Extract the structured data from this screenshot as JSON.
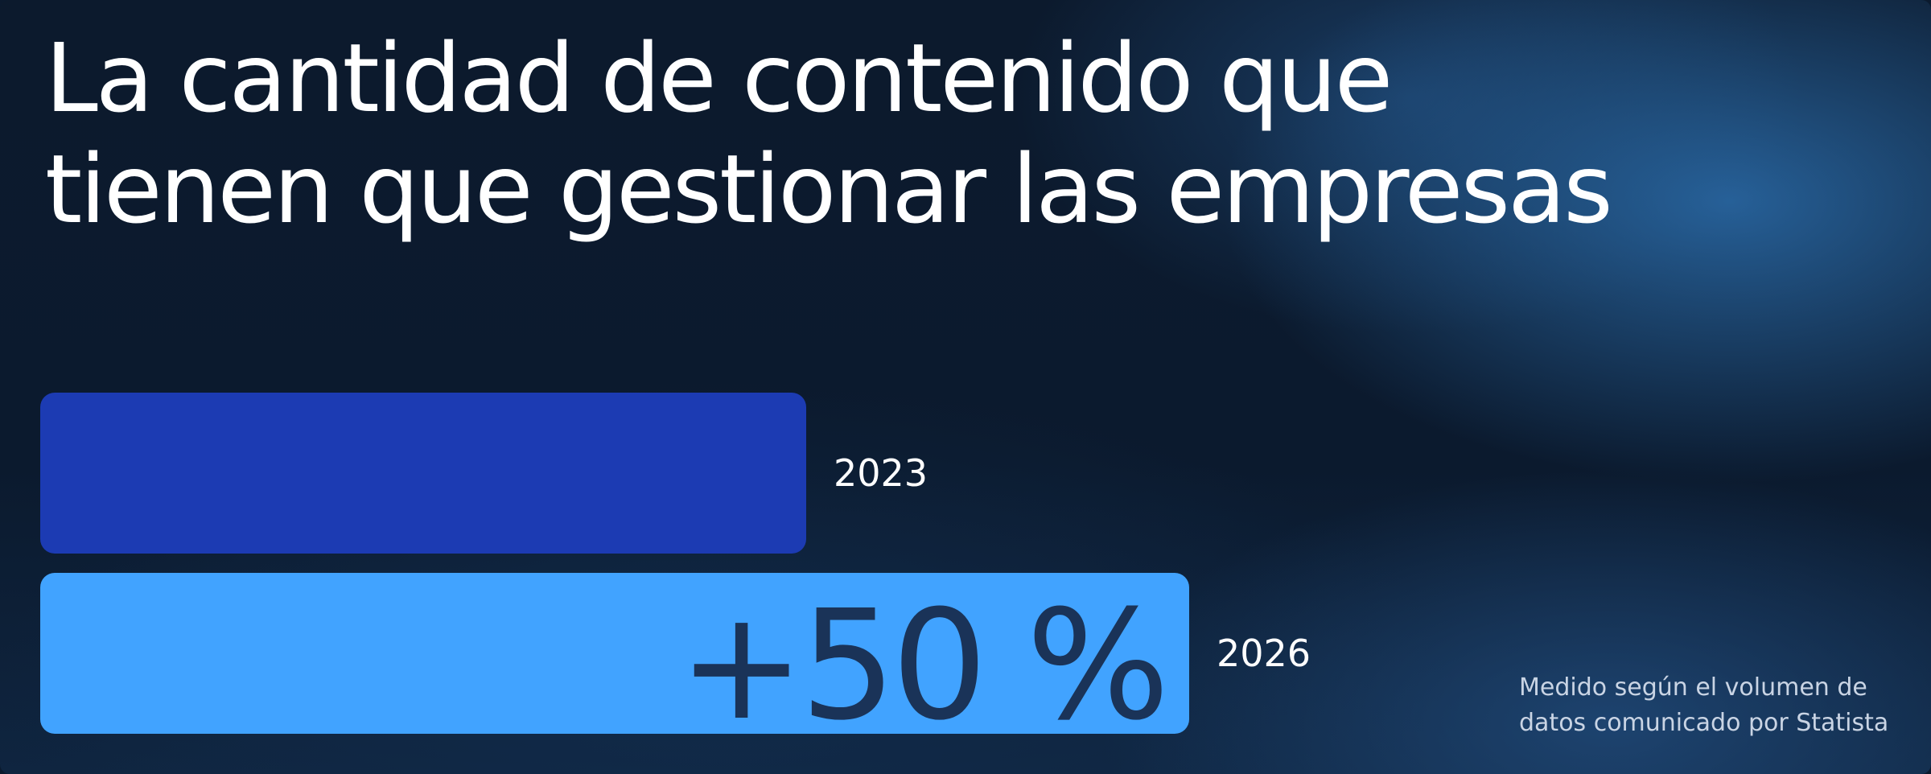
{
  "title_lines": [
    "La cantidad de contenido que",
    "tienen que gestionar las empresas"
  ],
  "chart_data": {
    "type": "bar",
    "orientation": "horizontal",
    "categories": [
      "2023",
      "2026"
    ],
    "values": [
      100,
      150
    ],
    "bar_labels": [
      "",
      "+50 %"
    ],
    "colors": [
      "#1c3bb3",
      "#41a3ff"
    ],
    "label_color": "#1a3358",
    "title": "La cantidad de contenido que tienen que gestionar las empresas",
    "xlabel": "",
    "ylabel": "",
    "grid": false,
    "legend": "none"
  },
  "note_lines": [
    "Medido según el volumen de",
    "datos comunicado por Statista"
  ],
  "colors": {
    "background": "#0b1a2e",
    "text": "#ffffff",
    "note": "#c9d4e4"
  }
}
